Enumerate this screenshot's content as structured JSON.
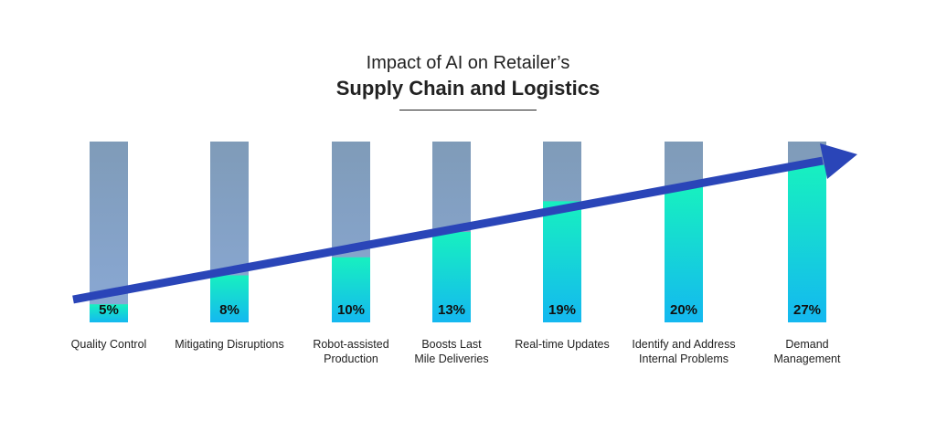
{
  "title_line1": "Impact of AI on Retailer’s",
  "title_line2": "Supply Chain and Logistics",
  "colors": {
    "bar_bg_top": "#7f9bb8",
    "bar_bg_bottom": "#8aa9d6",
    "fill_top": "#17f0c0",
    "fill_bottom": "#14b8f0",
    "arrow": "#2a45b8"
  },
  "chart_data": {
    "type": "bar",
    "categories": [
      [
        "Quality Control"
      ],
      [
        "Mitigating Disruptions"
      ],
      [
        "Robot-assisted",
        "Production"
      ],
      [
        "Boosts Last",
        "Mile Deliveries"
      ],
      [
        "Real-time Updates"
      ],
      [
        "Identify and Address",
        "Internal Problems"
      ],
      [
        "Demand",
        "Management"
      ]
    ],
    "values": [
      5,
      8,
      10,
      13,
      19,
      20,
      27
    ],
    "value_labels": [
      "5%",
      "8%",
      "10%",
      "13%",
      "19%",
      "20%",
      "27%"
    ],
    "ylim": [
      0,
      30
    ]
  }
}
